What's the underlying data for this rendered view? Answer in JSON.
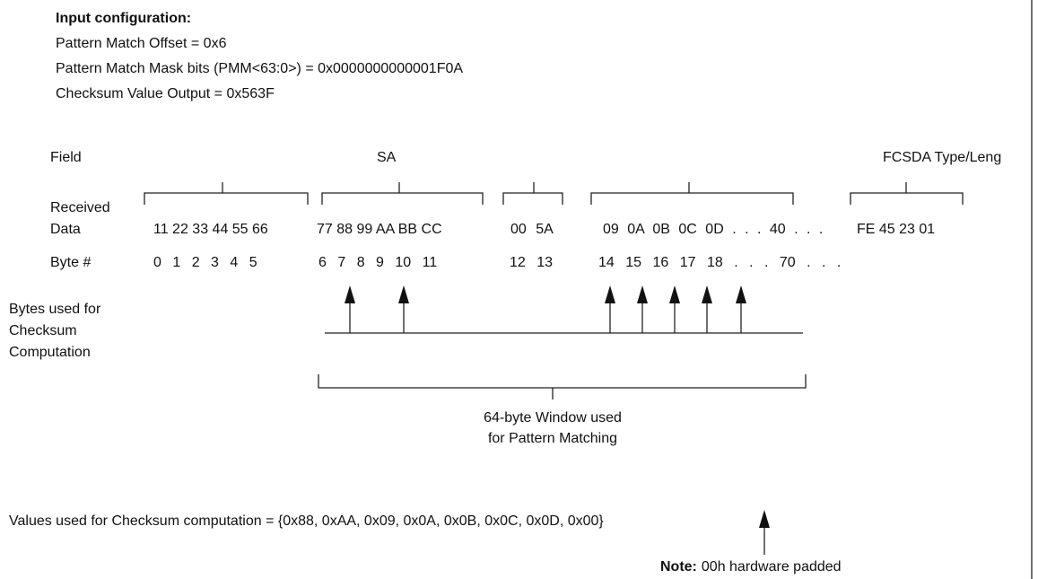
{
  "config": {
    "title": "Input configuration:",
    "lines": [
      "Pattern Match Offset = 0x6",
      "Pattern Match Mask bits (PMM<63:0>) = 0x0000000000001F0A",
      "Checksum Value Output =  0x563F"
    ]
  },
  "row_labels": {
    "field": "Field",
    "received": [
      "Received",
      "Data"
    ],
    "byte": "Byte #",
    "used": [
      "Bytes used for",
      "Checksum",
      "Computation"
    ]
  },
  "fields": [
    "SA",
    "FCSDA Type/Leng"
  ],
  "data_groups": [
    "11 22 33 44 55 66",
    "77 88 99 AA BB CC",
    "00 5A",
    "09 0A 0B 0C 0D . . . 40 . . .",
    "FE 45 23 01"
  ],
  "byte_groups": [
    "0 1 2 3 4 5",
    "6 7 8 9 10 11",
    "12 13",
    "14 15 16 17 18 . . . 70 . . ."
  ],
  "window": [
    "64-byte Window used",
    "for Pattern Matching"
  ],
  "values_line": "Values used for Checksum computation = {0x88, 0xAA, 0x09, 0x0A, 0x0B, 0x0C, 0x0D, 0x00}",
  "note": {
    "label": "Note:",
    "text": "00h hardware padded"
  }
}
